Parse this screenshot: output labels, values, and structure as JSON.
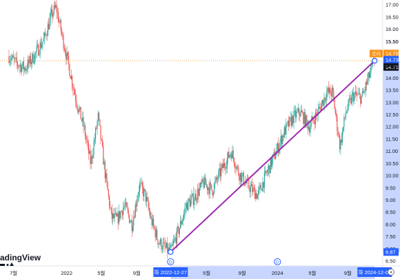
{
  "chart_data": {
    "type": "candlestick",
    "watermark": "adingView",
    "y_ticks": [
      "6.50",
      "7.00",
      "7.50",
      "8.00",
      "8.50",
      "9.00",
      "9.50",
      "10.00",
      "10.50",
      "11.00",
      "11.50",
      "12.00",
      "12.50",
      "13.00",
      "13.50",
      "14.00",
      "14.50",
      "15.00",
      "15.50",
      "16.00",
      "16.50",
      "17.00"
    ],
    "ylim": [
      6.3,
      17.2
    ],
    "x_ticks": [
      {
        "label": "7월",
        "date": "2021-07-01"
      },
      {
        "label": "2022",
        "date": "2022-01-01"
      },
      {
        "label": "5월",
        "date": "2022-05-01"
      },
      {
        "label": "9월",
        "date": "2022-09-01"
      },
      {
        "label": "5월",
        "date": "2023-05-01"
      },
      {
        "label": "9월",
        "date": "2023-09-01"
      },
      {
        "label": "2024",
        "date": "2024-01-01"
      },
      {
        "label": "5월",
        "date": "2024-05-01"
      },
      {
        "label": "9월",
        "date": "2024-09-01"
      }
    ],
    "xlim": [
      "2021-05-15",
      "2024-12-31"
    ],
    "price_path": [
      [
        "2021-06-15",
        14.9
      ],
      [
        "2021-07-10",
        14.6
      ],
      [
        "2021-08-10",
        14.4
      ],
      [
        "2021-09-10",
        14.9
      ],
      [
        "2021-10-15",
        15.6
      ],
      [
        "2021-11-10",
        16.6
      ],
      [
        "2021-11-25",
        16.9
      ],
      [
        "2021-12-15",
        15.8
      ],
      [
        "2022-01-10",
        14.4
      ],
      [
        "2022-02-05",
        13.0
      ],
      [
        "2022-03-01",
        12.0
      ],
      [
        "2022-03-25",
        10.5
      ],
      [
        "2022-04-20",
        12.4
      ],
      [
        "2022-05-15",
        10.0
      ],
      [
        "2022-06-05",
        8.3
      ],
      [
        "2022-06-25",
        8.2
      ],
      [
        "2022-07-20",
        8.8
      ],
      [
        "2022-08-15",
        8.0
      ],
      [
        "2022-09-10",
        9.6
      ],
      [
        "2022-09-30",
        9.2
      ],
      [
        "2022-10-20",
        8.2
      ],
      [
        "2022-11-15",
        7.3
      ],
      [
        "2022-12-10",
        7.0
      ],
      [
        "2022-12-27",
        6.87
      ],
      [
        "2023-01-25",
        7.8
      ],
      [
        "2023-02-20",
        8.8
      ],
      [
        "2023-03-20",
        9.1
      ],
      [
        "2023-04-20",
        9.7
      ],
      [
        "2023-05-20",
        9.4
      ],
      [
        "2023-06-20",
        10.2
      ],
      [
        "2023-07-25",
        11.0
      ],
      [
        "2023-08-20",
        10.1
      ],
      [
        "2023-09-20",
        9.6
      ],
      [
        "2023-10-25",
        9.2
      ],
      [
        "2023-11-25",
        10.1
      ],
      [
        "2023-12-25",
        10.9
      ],
      [
        "2024-01-25",
        11.8
      ],
      [
        "2024-02-25",
        12.4
      ],
      [
        "2024-03-20",
        12.6
      ],
      [
        "2024-04-20",
        12.0
      ],
      [
        "2024-05-20",
        12.6
      ],
      [
        "2024-06-20",
        13.4
      ],
      [
        "2024-07-10",
        13.4
      ],
      [
        "2024-08-05",
        11.2
      ],
      [
        "2024-08-25",
        12.6
      ],
      [
        "2024-09-20",
        13.3
      ],
      [
        "2024-10-20",
        13.2
      ],
      [
        "2024-11-20",
        14.3
      ],
      [
        "2024-12-03",
        14.71
      ]
    ],
    "trendline": {
      "from": {
        "date": "2022-12-27",
        "value": 6.87
      },
      "to": {
        "date": "2024-12-03",
        "value": 14.71
      },
      "color": "#9c27b0"
    },
    "price_labels": [
      {
        "text": "15.50",
        "style": "plain"
      },
      {
        "text": "프리",
        "style": "orange-prefix"
      },
      {
        "text": "14.75",
        "style": "orange"
      },
      {
        "text": "14.73",
        "style": "blue"
      },
      {
        "text": "14.71",
        "style": "dark"
      },
      {
        "text": "14.50",
        "style": "plain"
      },
      {
        "text": "6.87",
        "style": "blue"
      }
    ],
    "current_price": 14.71,
    "premarket_price": 14.75,
    "date_labels": [
      "화 2022-12-27",
      "화 2024-12-03"
    ],
    "markers": [
      {
        "text": "D",
        "date": "2022-12-27"
      },
      {
        "text": "D",
        "date": "2024-01-01"
      }
    ],
    "colors": {
      "up": "#26a69a",
      "down": "#ef5350",
      "orange": "#f7931a",
      "blue": "#2962ff",
      "dark": "#131722",
      "highlight": "#c8d6ff",
      "grid": "#ffffff",
      "dotted": "#f0a040"
    }
  }
}
